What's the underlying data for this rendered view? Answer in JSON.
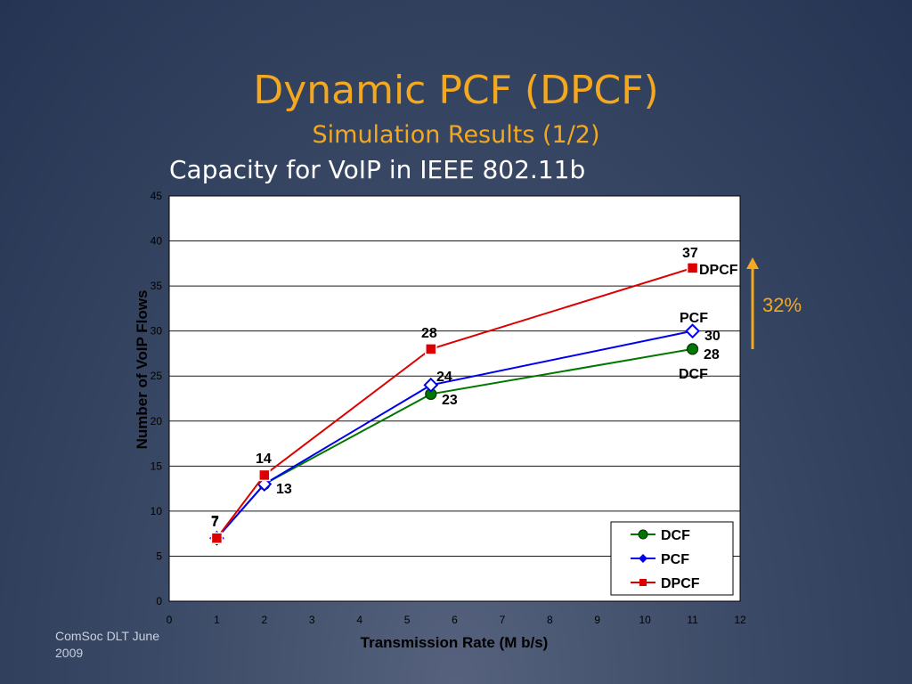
{
  "slide": {
    "title": "Dynamic PCF (DPCF)",
    "subtitle": "Simulation Results (1/2)",
    "heading": "Capacity for VoIP in IEEE 802.11b",
    "footer": "ComSoc DLT June 2009",
    "accent_color": "#f3a81f"
  },
  "chart_data": {
    "type": "line",
    "xlabel": "Transmission Rate (M b/s)",
    "ylabel": "Number of VoIP Flows",
    "xlim": [
      0,
      12
    ],
    "ylim": [
      0,
      45
    ],
    "xticks": [
      0,
      1,
      2,
      3,
      4,
      5,
      6,
      7,
      8,
      9,
      10,
      11,
      12
    ],
    "yticks": [
      0,
      5,
      10,
      15,
      20,
      25,
      30,
      35,
      40,
      45
    ],
    "grid": "horizontal",
    "legend_position": "bottom-right",
    "series": [
      {
        "name": "DCF",
        "color": "#007700",
        "marker": "circle",
        "x": [
          1,
          2,
          5.5,
          11
        ],
        "y": [
          7,
          13,
          23,
          28
        ]
      },
      {
        "name": "PCF",
        "color": "#0000ee",
        "marker": "diamond",
        "x": [
          1,
          2,
          5.5,
          11
        ],
        "y": [
          7,
          13,
          24,
          30
        ]
      },
      {
        "name": "DPCF",
        "color": "#dd0000",
        "marker": "square",
        "x": [
          1,
          2,
          5.5,
          11
        ],
        "y": [
          7,
          14,
          28,
          37
        ]
      }
    ],
    "data_labels": [
      "7",
      "7",
      "14",
      "13",
      "28",
      "24",
      "23",
      "37",
      "30",
      "28"
    ],
    "annotations": {
      "dpcf_label": "DPCF",
      "pcf_label": "PCF",
      "dcf_label": "DCF",
      "improvement": "32%"
    }
  }
}
